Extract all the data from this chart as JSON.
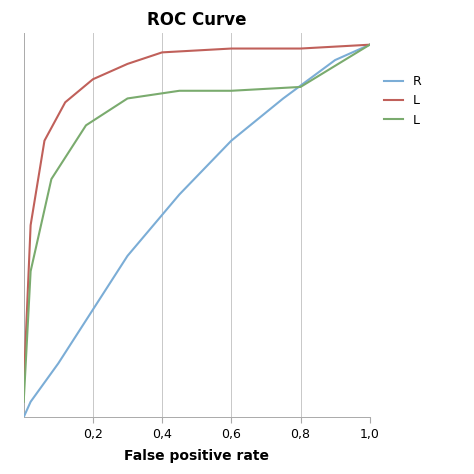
{
  "title": "ROC Curve",
  "xlabel": "False positive rate",
  "xlim": [
    0,
    1.0
  ],
  "ylim": [
    0,
    1.0
  ],
  "xticks": [
    0.2,
    0.4,
    0.6,
    0.8,
    1.0
  ],
  "xtick_labels": [
    "0,2",
    "0,4",
    "0,6",
    "0,8",
    "1,0"
  ],
  "background_color": "#ffffff",
  "grid_color": "#c8c8c8",
  "curves": [
    {
      "label": "R",
      "color": "#7badd6",
      "x": [
        0.0,
        0.02,
        0.1,
        0.2,
        0.3,
        0.45,
        0.6,
        0.75,
        0.9,
        1.0
      ],
      "y": [
        0.0,
        0.04,
        0.14,
        0.28,
        0.42,
        0.58,
        0.72,
        0.83,
        0.93,
        0.97
      ]
    },
    {
      "label": "L",
      "color": "#c0605a",
      "x": [
        0.0,
        0.02,
        0.06,
        0.12,
        0.2,
        0.3,
        0.4,
        0.6,
        0.8,
        1.0
      ],
      "y": [
        0.08,
        0.5,
        0.72,
        0.82,
        0.88,
        0.92,
        0.95,
        0.96,
        0.96,
        0.97
      ]
    },
    {
      "label": "L",
      "color": "#7aab6e",
      "x": [
        0.0,
        0.02,
        0.08,
        0.18,
        0.3,
        0.45,
        0.6,
        0.8,
        1.0
      ],
      "y": [
        0.04,
        0.38,
        0.62,
        0.76,
        0.83,
        0.85,
        0.85,
        0.86,
        0.97
      ]
    }
  ]
}
